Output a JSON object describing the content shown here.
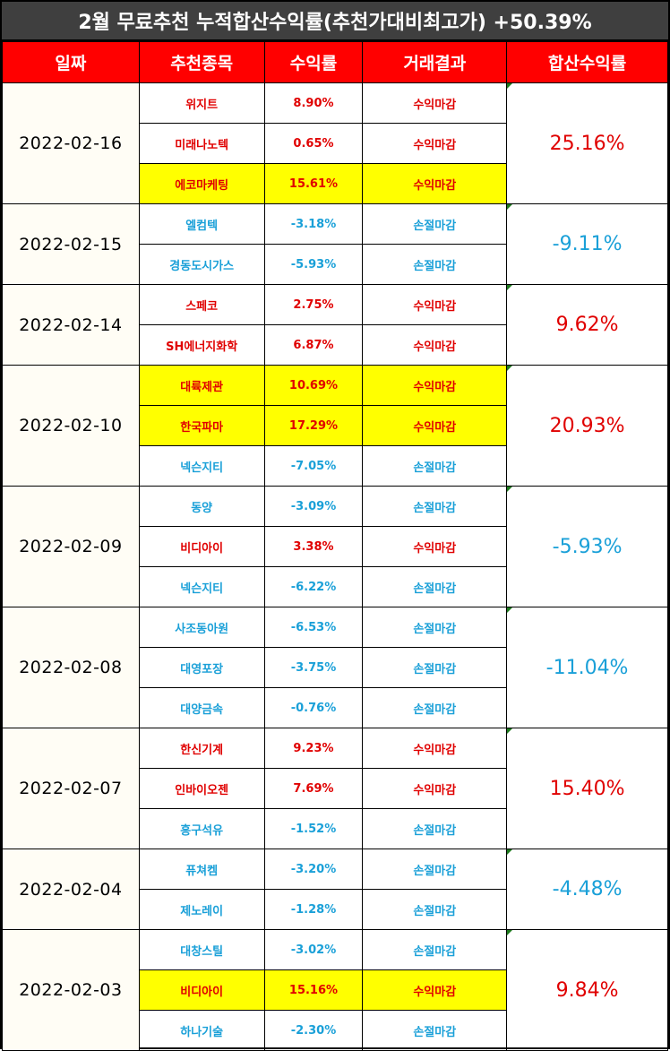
{
  "title": "2월 무료추천 누적합산수익률(추천가대비최고가) +50.39%",
  "headers": [
    "일짜",
    "추천종목",
    "수익률",
    "거래결과",
    "합산수익률"
  ],
  "colors": {
    "gain": "#e00000",
    "loss": "#1aa0d8",
    "highlight": "#ffff00",
    "header_bg": "#ff0000",
    "title_bg": "#3f3f3f"
  },
  "groups": [
    {
      "date": "2022-02-16",
      "total": "25.16%",
      "total_trend": "gain",
      "rows": [
        {
          "name": "위지트",
          "rate": "8.90%",
          "result": "수익마감",
          "trend": "gain",
          "highlight": false
        },
        {
          "name": "미래나노텍",
          "rate": "0.65%",
          "result": "수익마감",
          "trend": "gain",
          "highlight": false
        },
        {
          "name": "에코마케팅",
          "rate": "15.61%",
          "result": "수익마감",
          "trend": "gain",
          "highlight": true
        }
      ]
    },
    {
      "date": "2022-02-15",
      "total": "-9.11%",
      "total_trend": "loss",
      "rows": [
        {
          "name": "엘컴텍",
          "rate": "-3.18%",
          "result": "손절마감",
          "trend": "loss",
          "highlight": false
        },
        {
          "name": "경동도시가스",
          "rate": "-5.93%",
          "result": "손절마감",
          "trend": "loss",
          "highlight": false
        }
      ]
    },
    {
      "date": "2022-02-14",
      "total": "9.62%",
      "total_trend": "gain",
      "rows": [
        {
          "name": "스페코",
          "rate": "2.75%",
          "result": "수익마감",
          "trend": "gain",
          "highlight": false
        },
        {
          "name": "SH에너지화학",
          "rate": "6.87%",
          "result": "수익마감",
          "trend": "gain",
          "highlight": false
        }
      ]
    },
    {
      "date": "2022-02-10",
      "total": "20.93%",
      "total_trend": "gain",
      "rows": [
        {
          "name": "대륙제관",
          "rate": "10.69%",
          "result": "수익마감",
          "trend": "gain",
          "highlight": true
        },
        {
          "name": "한국파마",
          "rate": "17.29%",
          "result": "수익마감",
          "trend": "gain",
          "highlight": true
        },
        {
          "name": "넥슨지티",
          "rate": "-7.05%",
          "result": "손절마감",
          "trend": "loss",
          "highlight": false
        }
      ]
    },
    {
      "date": "2022-02-09",
      "total": "-5.93%",
      "total_trend": "loss",
      "rows": [
        {
          "name": "동양",
          "rate": "-3.09%",
          "result": "손절마감",
          "trend": "loss",
          "highlight": false
        },
        {
          "name": "비디아이",
          "rate": "3.38%",
          "result": "수익마감",
          "trend": "gain",
          "highlight": false
        },
        {
          "name": "넥슨지티",
          "rate": "-6.22%",
          "result": "손절마감",
          "trend": "loss",
          "highlight": false
        }
      ]
    },
    {
      "date": "2022-02-08",
      "total": "-11.04%",
      "total_trend": "loss",
      "rows": [
        {
          "name": "사조동아원",
          "rate": "-6.53%",
          "result": "손절마감",
          "trend": "loss",
          "highlight": false
        },
        {
          "name": "대영포장",
          "rate": "-3.75%",
          "result": "손절마감",
          "trend": "loss",
          "highlight": false
        },
        {
          "name": "대양금속",
          "rate": "-0.76%",
          "result": "손절마감",
          "trend": "loss",
          "highlight": false
        }
      ]
    },
    {
      "date": "2022-02-07",
      "total": "15.40%",
      "total_trend": "gain",
      "rows": [
        {
          "name": "한신기계",
          "rate": "9.23%",
          "result": "수익마감",
          "trend": "gain",
          "highlight": false
        },
        {
          "name": "인바이오젠",
          "rate": "7.69%",
          "result": "수익마감",
          "trend": "gain",
          "highlight": false
        },
        {
          "name": "흥구석유",
          "rate": "-1.52%",
          "result": "손절마감",
          "trend": "loss",
          "highlight": false
        }
      ]
    },
    {
      "date": "2022-02-04",
      "total": "-4.48%",
      "total_trend": "loss",
      "rows": [
        {
          "name": "퓨쳐켐",
          "rate": "-3.20%",
          "result": "손절마감",
          "trend": "loss",
          "highlight": false
        },
        {
          "name": "제노레이",
          "rate": "-1.28%",
          "result": "손절마감",
          "trend": "loss",
          "highlight": false
        }
      ]
    },
    {
      "date": "2022-02-03",
      "total": "9.84%",
      "total_trend": "gain",
      "rows": [
        {
          "name": "대창스틸",
          "rate": "-3.02%",
          "result": "손절마감",
          "trend": "loss",
          "highlight": false
        },
        {
          "name": "비디아이",
          "rate": "15.16%",
          "result": "수익마감",
          "trend": "gain",
          "highlight": true
        },
        {
          "name": "하나기술",
          "rate": "-2.30%",
          "result": "손절마감",
          "trend": "loss",
          "highlight": false
        }
      ]
    }
  ]
}
